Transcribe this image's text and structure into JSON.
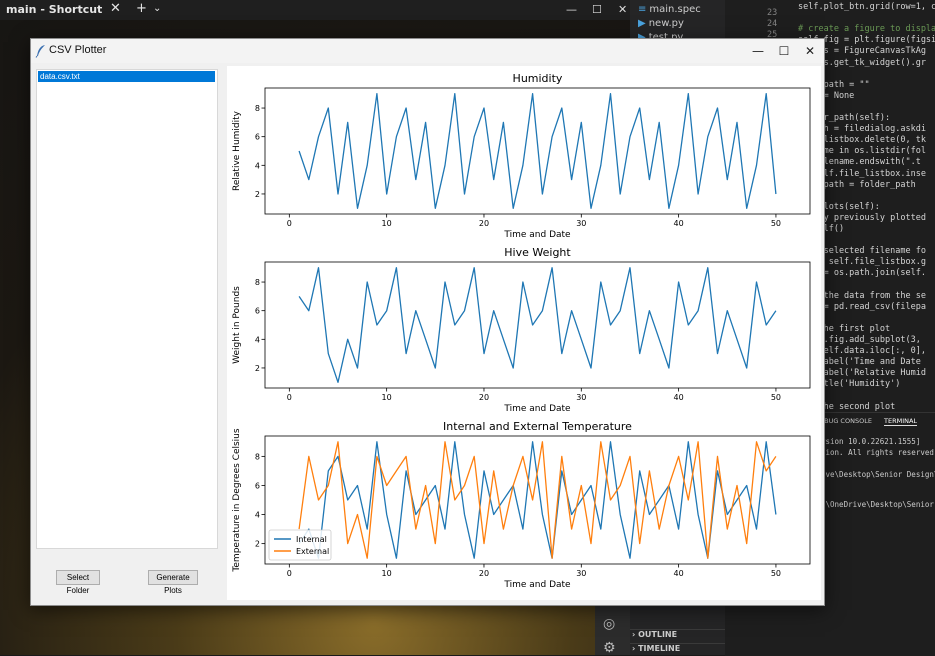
{
  "background": {
    "terminal_tab": "main - Shortcut",
    "explorer": {
      "files": [
        "main.spec",
        "new.py",
        "test.py"
      ],
      "outline": "OUTLINE",
      "timeline": "TIMELINE"
    },
    "editor_line_numbers": [
      "23",
      "24",
      "25",
      "26",
      "27",
      "28"
    ],
    "editor_lines": [
      "self.plot_btn.grid(row=1, col",
      "",
      "# create a figure to display t",
      "self.fig = plt.figure(figsize=",
      "canvas = FigureCanvasTkAg",
      "canvas.get_tk_widget().gr",
      "",
      "file_path = \"\"",
      "data = None",
      "",
      "folder_path(self):",
      "r_path = filedialog.askdi",
      "file_listbox.delete(0, tk",
      "ilename in os.listdir(fol",
      "f (filename.endswith(\".t",
      "   self.file_listbox.inse",
      "file_path = folder_path",
      "",
      "ate_plots(self):",
      "ar any previously plotted",
      "fig.clf()",
      "",
      " the selected filename fo",
      "ame = self.file_listbox.g",
      "path = os.path.join(self.",
      "",
      "d in the data from the se",
      "data = pd.read_csv(filepa",
      "",
      "ate the first plot",
      " self.fig.add_subplot(3,",
      "lot(self.data.iloc[:, 0],",
      "et_xlabel('Time and Date",
      "et_ylabel('Relative Humid",
      "et_title('Humidity')",
      "",
      "ate the second plot"
    ],
    "panel_tabs": [
      "DEBUG CONSOLE",
      "TERMINAL"
    ],
    "panel_lines": [
      "rsion 10.0.22621.1555]",
      "tion. All rights reserved.",
      "",
      "ive\\Desktop\\Senior Design\\GU",
      "",
      "1\\OneDrive\\Desktop\\Senior D"
    ]
  },
  "window": {
    "title": "CSV Plotter",
    "minimize": "—",
    "maximize": "☐",
    "close": "✕"
  },
  "file_listbox": {
    "items": [
      "data.csv.txt"
    ],
    "selected": 0
  },
  "buttons": {
    "select_folder": "Select Folder",
    "generate_plots": "Generate Plots"
  },
  "chart_data": [
    {
      "type": "line",
      "title": "Humidity",
      "xlabel": "Time and Date",
      "ylabel": "Relative Humidity",
      "xlim": [
        -2.5,
        53.5
      ],
      "ylim": [
        0.6,
        9.4
      ],
      "xticks": [
        0,
        10,
        20,
        30,
        40,
        50
      ],
      "yticks": [
        2,
        4,
        6,
        8
      ],
      "x": [
        1,
        2,
        3,
        4,
        5,
        6,
        7,
        8,
        9,
        10,
        11,
        12,
        13,
        14,
        15,
        16,
        17,
        18,
        19,
        20,
        21,
        22,
        23,
        24,
        25,
        26,
        27,
        28,
        29,
        30,
        31,
        32,
        33,
        34,
        35,
        36,
        37,
        38,
        39,
        40,
        41,
        42,
        43,
        44,
        45,
        46,
        47,
        48,
        49,
        50
      ],
      "series": [
        {
          "color": "#1f77b4",
          "values": [
            5,
            3,
            6,
            8,
            2,
            7,
            1,
            4,
            9,
            2,
            6,
            8,
            3,
            7,
            1,
            4,
            9,
            2,
            6,
            8,
            3,
            7,
            1,
            4,
            9,
            2,
            6,
            8,
            3,
            7,
            1,
            4,
            9,
            2,
            6,
            8,
            3,
            7,
            1,
            4,
            9,
            2,
            6,
            8,
            3,
            7,
            1,
            4,
            9,
            2
          ]
        }
      ]
    },
    {
      "type": "line",
      "title": "Hive Weight",
      "xlabel": "Time and Date",
      "ylabel": "Weight in Pounds",
      "xlim": [
        -2.5,
        53.5
      ],
      "ylim": [
        0.6,
        9.4
      ],
      "xticks": [
        0,
        10,
        20,
        30,
        40,
        50
      ],
      "yticks": [
        2,
        4,
        6,
        8
      ],
      "x": [
        1,
        2,
        3,
        4,
        5,
        6,
        7,
        8,
        9,
        10,
        11,
        12,
        13,
        14,
        15,
        16,
        17,
        18,
        19,
        20,
        21,
        22,
        23,
        24,
        25,
        26,
        27,
        28,
        29,
        30,
        31,
        32,
        33,
        34,
        35,
        36,
        37,
        38,
        39,
        40,
        41,
        42,
        43,
        44,
        45,
        46,
        47,
        48,
        49,
        50
      ],
      "series": [
        {
          "color": "#1f77b4",
          "values": [
            7,
            6,
            9,
            3,
            1,
            4,
            2,
            8,
            5,
            6,
            9,
            3,
            6,
            4,
            2,
            8,
            5,
            6,
            9,
            3,
            6,
            4,
            2,
            8,
            5,
            6,
            9,
            3,
            6,
            4,
            2,
            8,
            5,
            6,
            9,
            3,
            6,
            4,
            2,
            8,
            5,
            6,
            9,
            3,
            6,
            4,
            2,
            8,
            5,
            6
          ]
        }
      ]
    },
    {
      "type": "line",
      "title": "Internal and External Temperature",
      "xlabel": "Time and Date",
      "ylabel": "Temperature in Degrees Celsius",
      "xlim": [
        -2.5,
        53.5
      ],
      "ylim": [
        0.6,
        9.4
      ],
      "xticks": [
        0,
        10,
        20,
        30,
        40,
        50
      ],
      "yticks": [
        2,
        4,
        6,
        8
      ],
      "legend": "lower-left",
      "x": [
        1,
        2,
        3,
        4,
        5,
        6,
        7,
        8,
        9,
        10,
        11,
        12,
        13,
        14,
        15,
        16,
        17,
        18,
        19,
        20,
        21,
        22,
        23,
        24,
        25,
        26,
        27,
        28,
        29,
        30,
        31,
        32,
        33,
        34,
        35,
        36,
        37,
        38,
        39,
        40,
        41,
        42,
        43,
        44,
        45,
        46,
        47,
        48,
        49,
        50
      ],
      "series": [
        {
          "name": "Internal",
          "color": "#1f77b4",
          "values": [
            2,
            3,
            1,
            7,
            8,
            5,
            6,
            3,
            9,
            4,
            1,
            7,
            4,
            5,
            6,
            3,
            9,
            4,
            1,
            7,
            4,
            5,
            6,
            3,
            9,
            4,
            1,
            7,
            4,
            5,
            6,
            3,
            9,
            4,
            1,
            7,
            4,
            5,
            6,
            3,
            9,
            4,
            1,
            7,
            4,
            5,
            6,
            3,
            9,
            4
          ]
        },
        {
          "name": "External",
          "color": "#ff7f0e",
          "values": [
            3,
            8,
            5,
            6,
            9,
            2,
            4,
            1,
            8,
            6,
            7,
            8,
            3,
            6,
            2,
            9,
            5,
            6,
            8,
            2,
            7,
            3,
            6,
            8,
            5,
            9,
            1,
            8,
            3,
            6,
            2,
            9,
            5,
            6,
            8,
            2,
            7,
            3,
            6,
            8,
            5,
            9,
            1,
            8,
            3,
            6,
            2,
            9,
            7,
            8
          ]
        }
      ]
    }
  ]
}
